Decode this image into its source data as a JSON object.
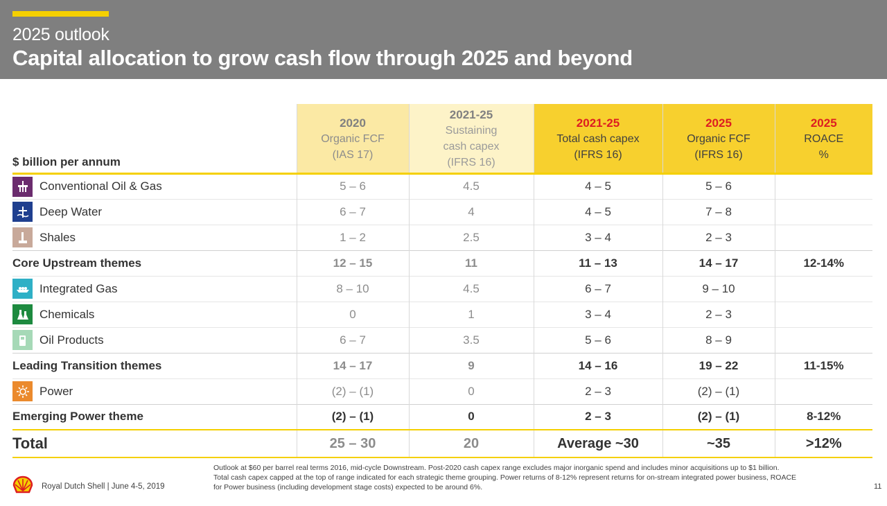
{
  "header": {
    "subtitle": "2025 outlook",
    "title": "Capital allocation to grow cash flow through 2025 and beyond"
  },
  "table": {
    "row_label_header": "$ billion per annum",
    "columns": [
      {
        "year": "2020",
        "line1": "Organic FCF",
        "line2": "(IAS 17)",
        "line3": ""
      },
      {
        "year": "2021-25",
        "line1": "Sustaining",
        "line2": "cash capex",
        "line3": "(IFRS 16)"
      },
      {
        "year": "2021-25",
        "line1": "Total cash capex",
        "line2": "(IFRS 16)",
        "line3": ""
      },
      {
        "year": "2025",
        "line1": "Organic FCF",
        "line2": "(IFRS 16)",
        "line3": ""
      },
      {
        "year": "2025",
        "line1": "ROACE",
        "line2": "%",
        "line3": ""
      }
    ],
    "rows": [
      {
        "name": "Conventional Oil & Gas",
        "icon": "oil-rig-icon",
        "values": [
          "5 – 6",
          "4.5",
          "4 – 5",
          "5 – 6",
          ""
        ]
      },
      {
        "name": "Deep Water",
        "icon": "deep-water-icon",
        "values": [
          "6 – 7",
          "4",
          "4 – 5",
          "7 – 8",
          ""
        ]
      },
      {
        "name": "Shales",
        "icon": "shales-icon",
        "values": [
          "1 – 2",
          "2.5",
          "3 – 4",
          "2 – 3",
          ""
        ]
      },
      {
        "name": "Core Upstream themes",
        "values": [
          "12 – 15",
          "11",
          "11 – 13",
          "14 – 17",
          "12-14%"
        ]
      },
      {
        "name": "Integrated Gas",
        "icon": "lng-ship-icon",
        "values": [
          "8 – 10",
          "4.5",
          "6 – 7",
          "9 – 10",
          ""
        ]
      },
      {
        "name": "Chemicals",
        "icon": "chemicals-flask-icon",
        "values": [
          "0",
          "1",
          "3 – 4",
          "2 – 3",
          ""
        ]
      },
      {
        "name": "Oil Products",
        "icon": "fuel-pump-icon",
        "values": [
          "6 – 7",
          "3.5",
          "5 – 6",
          "8 – 9",
          ""
        ]
      },
      {
        "name": "Leading Transition themes",
        "values": [
          "14 – 17",
          "9",
          "14 – 16",
          "19 – 22",
          "11-15%"
        ]
      },
      {
        "name": "Power",
        "icon": "power-sun-icon",
        "values": [
          "(2) – (1)",
          "0",
          "2 – 3",
          "(2) – (1)",
          ""
        ]
      },
      {
        "name": "Emerging Power theme",
        "values": [
          "(2) – (1)",
          "0",
          "2 – 3",
          "(2) – (1)",
          "8-12%"
        ]
      },
      {
        "name": "Total",
        "values": [
          "25 – 30",
          "20",
          "Average ~30",
          "~35",
          ">12%"
        ]
      }
    ]
  },
  "footer": {
    "source": "Royal Dutch Shell | June 4-5, 2019",
    "note1": "Outlook at $60 per barrel real terms 2016, mid-cycle Downstream. Post-2020 cash capex range excludes major inorganic spend and includes minor acquisitions up to $1 billion.",
    "note2": "Total cash capex capped at the top of range indicated for each strategic theme grouping. Power returns of 8-12% represent returns for on-stream integrated power business, ROACE",
    "note3": "for Power business (including development stage costs) expected to be around 6%.",
    "page": "11"
  },
  "colors": {
    "header_bg": "#7f7f7f",
    "accent_yellow": "#f5d000",
    "light_yellow": "#fbe9a4",
    "dark_yellow": "#f7d02e",
    "shell_red": "#dd1d21"
  }
}
